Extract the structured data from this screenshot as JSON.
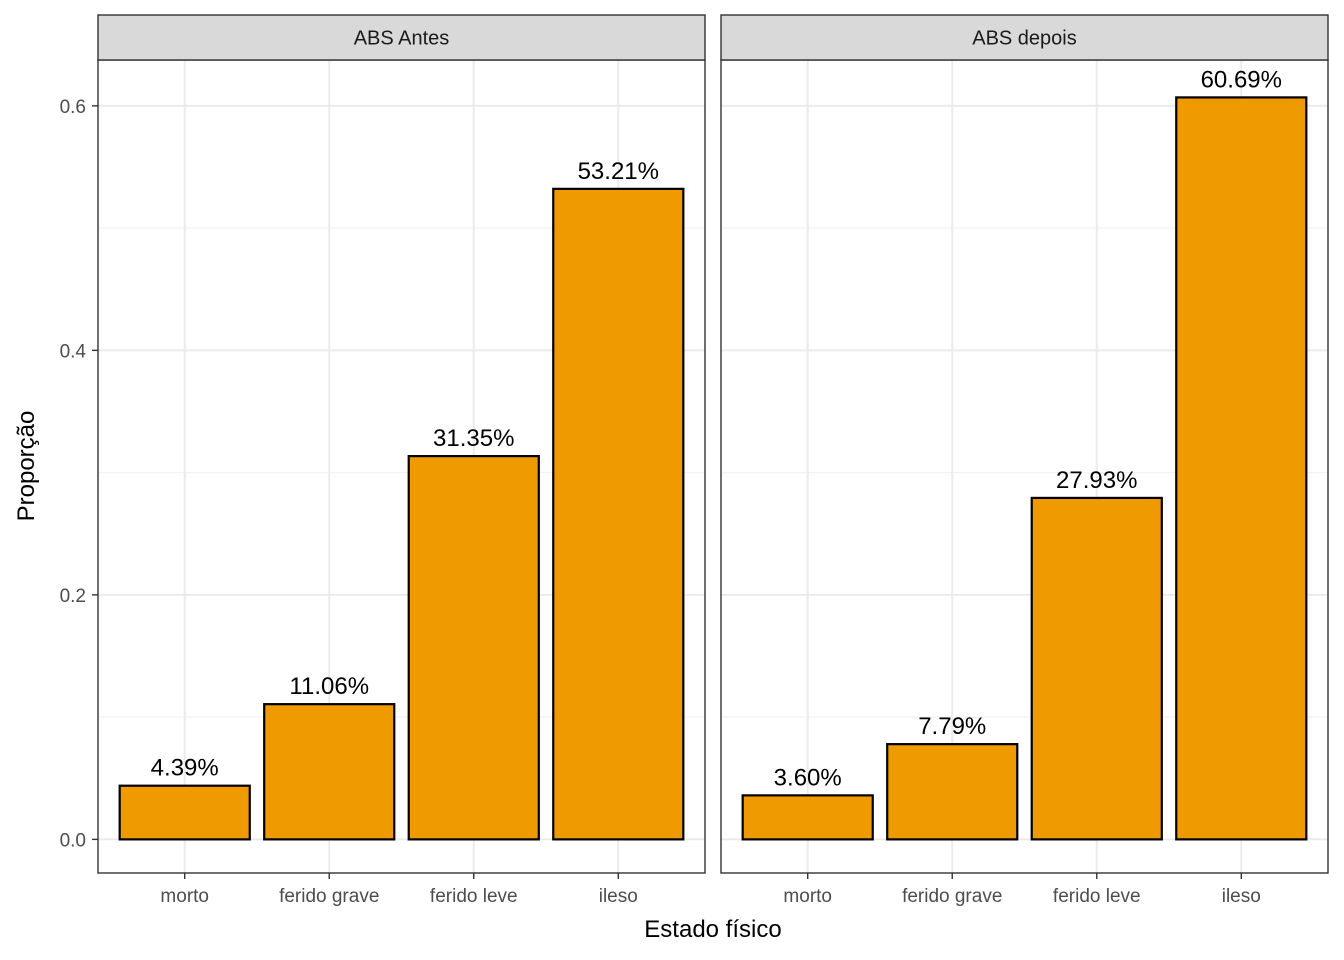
{
  "chart_data": {
    "type": "bar",
    "xlabel": "Estado físico",
    "ylabel": "Proporção",
    "ylim": [
      -0.0275,
      0.6375
    ],
    "yticks": [
      0.0,
      0.2,
      0.4,
      0.6
    ],
    "ytick_labels": [
      "0.0",
      "0.2",
      "0.4",
      "0.6"
    ],
    "grid": true,
    "categories": [
      "morto",
      "ferido grave",
      "ferido leve",
      "ileso"
    ],
    "bar_color": "#EE9A00",
    "bar_outline": "#000000",
    "panels": [
      {
        "title": "ABS Antes",
        "values": [
          0.0439,
          0.1106,
          0.3135,
          0.5321
        ],
        "labels": [
          "4.39%",
          "11.06%",
          "31.35%",
          "53.21%"
        ]
      },
      {
        "title": "ABS depois",
        "values": [
          0.036,
          0.0779,
          0.2793,
          0.6069
        ],
        "labels": [
          "3.60%",
          "7.79%",
          "27.93%",
          "60.69%"
        ]
      }
    ]
  }
}
